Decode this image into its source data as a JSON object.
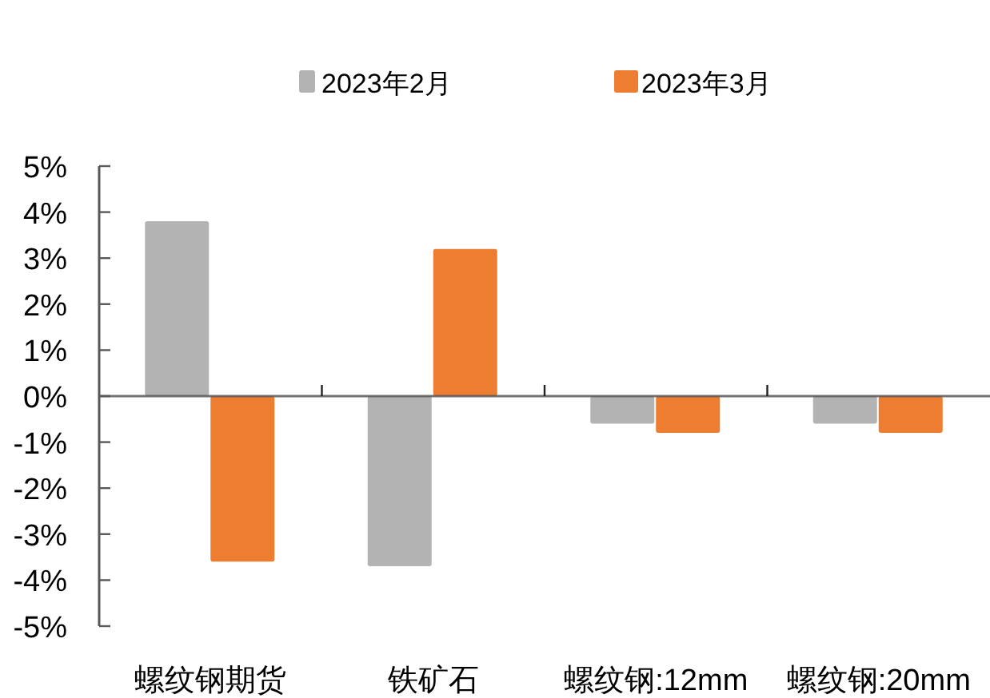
{
  "chart_data": {
    "type": "bar",
    "categories": [
      "螺纹钢期货",
      "铁矿石",
      "螺纹钢:12mm",
      "螺纹钢:20mm"
    ],
    "series": [
      {
        "name": "2023年2月",
        "color": "#b3b3b3",
        "values": [
          3.8,
          -3.7,
          -0.6,
          -0.6
        ]
      },
      {
        "name": "2023年3月",
        "color": "#ed7d31",
        "values": [
          -3.6,
          3.2,
          -0.8,
          -0.8
        ]
      }
    ],
    "ylim": [
      -5,
      5
    ],
    "yticks": [
      {
        "value": -5,
        "label": "-5%"
      },
      {
        "value": -4,
        "label": "-4%"
      },
      {
        "value": -3,
        "label": "-3%"
      },
      {
        "value": -2,
        "label": "-2%"
      },
      {
        "value": -1,
        "label": "-1%"
      },
      {
        "value": 0,
        "label": "0%"
      },
      {
        "value": 1,
        "label": "1%"
      },
      {
        "value": 2,
        "label": "2%"
      },
      {
        "value": 3,
        "label": "3%"
      },
      {
        "value": 4,
        "label": "4%"
      },
      {
        "value": 5,
        "label": "5%"
      }
    ],
    "legend": "top"
  }
}
